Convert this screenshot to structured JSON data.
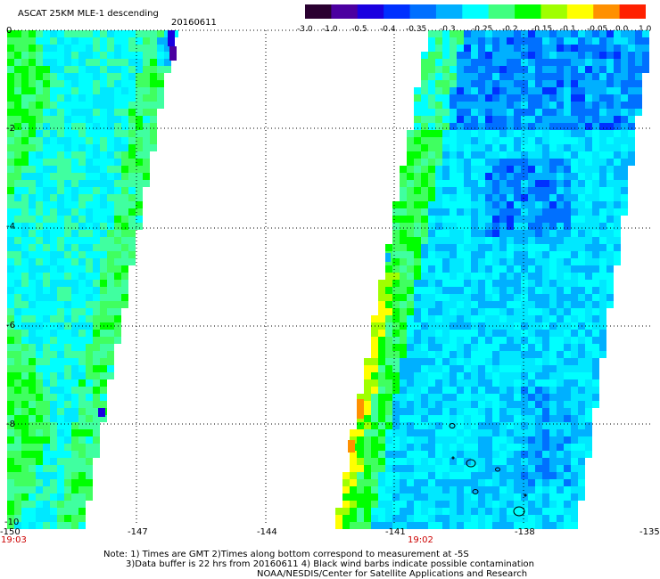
{
  "header": {
    "title": "ASCAT 25KM MLE-1 descending",
    "date": "20160611"
  },
  "colorbar": {
    "labels": [
      "-3.0",
      "-1.0",
      "-0.5",
      "-0.4",
      "-0.35",
      "-0.3",
      "-0.25",
      "-0.2",
      "-0.15",
      "-0.1",
      "-0.05",
      "0.0",
      "1.0"
    ],
    "colors": [
      "#2a0030",
      "#4b00a0",
      "#1a00e0",
      "#0030ff",
      "#0070ff",
      "#00b0ff",
      "#00ffff",
      "#40ff80",
      "#00ff00",
      "#a0ff00",
      "#ffff00",
      "#ff9000",
      "#ff2000"
    ]
  },
  "map": {
    "lon_labels": [
      "-150",
      "-147",
      "-144",
      "-141",
      "-138",
      "-135"
    ],
    "lat_labels": [
      "0",
      "-2",
      "-4",
      "-6",
      "-8",
      "-10"
    ],
    "time_labels": [
      "19:03",
      "19:02"
    ]
  },
  "notes": {
    "line1": "Note: 1) Times are GMT 2)Times along bottom correspond to measurement at -5S",
    "line2": "3)Data buffer is 22 hrs from 20160611 4) Black wind barbs indicate possible contamination",
    "line3": "NOAA/NESDIS/Center for Satellite Applications and Research"
  }
}
